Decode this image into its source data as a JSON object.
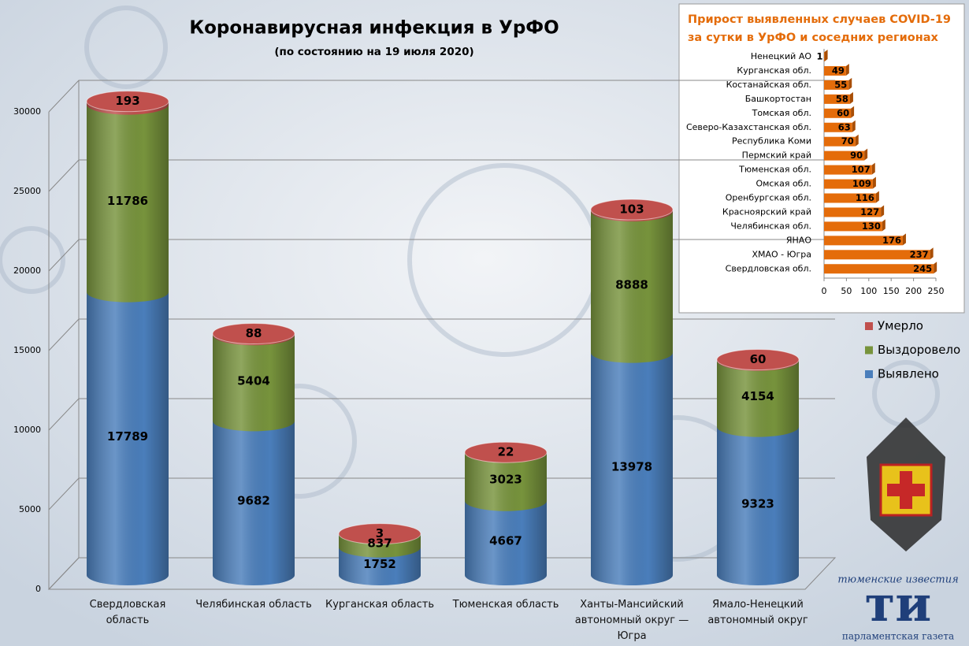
{
  "chart_data": [
    {
      "type": "bar",
      "stacked": true,
      "title": "Коронавирусная инфекция в УрФО",
      "subtitle": "(по состоянию на 19 июля 2020)",
      "categories": [
        "Свердловская область",
        "Челябинская область",
        "Курганская область",
        "Тюменская область",
        "Ханты-Мансийский автономный округ — Югра",
        "Ямало-Ненецкий автономный округ"
      ],
      "series": [
        {
          "name": "Выявлено",
          "color": "#4a7ebb",
          "values": [
            17789,
            9682,
            1752,
            4667,
            13978,
            9323
          ]
        },
        {
          "name": "Выздоровело",
          "color": "#77933c",
          "values": [
            11786,
            5404,
            837,
            3023,
            8888,
            4154
          ]
        },
        {
          "name": "Умерло",
          "color": "#c0504d",
          "values": [
            193,
            88,
            3,
            22,
            103,
            60
          ]
        }
      ],
      "ylim": [
        0,
        30000
      ],
      "yticks": [
        0,
        5000,
        10000,
        15000,
        20000,
        25000,
        30000
      ],
      "grid": true,
      "legend": "right"
    },
    {
      "type": "bar",
      "orientation": "horizontal",
      "title": "Прирост выявленных случаев COVID-19 за сутки в УрФО и соседних регионах",
      "categories": [
        "Ненецкий АО",
        "Курганская обл.",
        "Костанайская обл.",
        "Башкортостан",
        "Томская обл.",
        "Северо-Казахстанская обл.",
        "Республика Коми",
        "Пермский край",
        "Тюменская обл.",
        "Омская обл.",
        "Оренбургская обл.",
        "Красноярский край",
        "Челябинская обл.",
        "ЯНАО",
        "ХМАО - Югра",
        "Свердловская обл."
      ],
      "values": [
        1,
        49,
        55,
        58,
        60,
        63,
        70,
        90,
        107,
        109,
        116,
        127,
        130,
        176,
        237,
        245
      ],
      "color": "#e46c0a",
      "xlim": [
        0,
        250
      ],
      "xticks": [
        0,
        50,
        100,
        150,
        200,
        250
      ]
    }
  ],
  "logo": {
    "top": "тюменские известия",
    "mark": "ти",
    "bottom": "парламентская газета"
  }
}
